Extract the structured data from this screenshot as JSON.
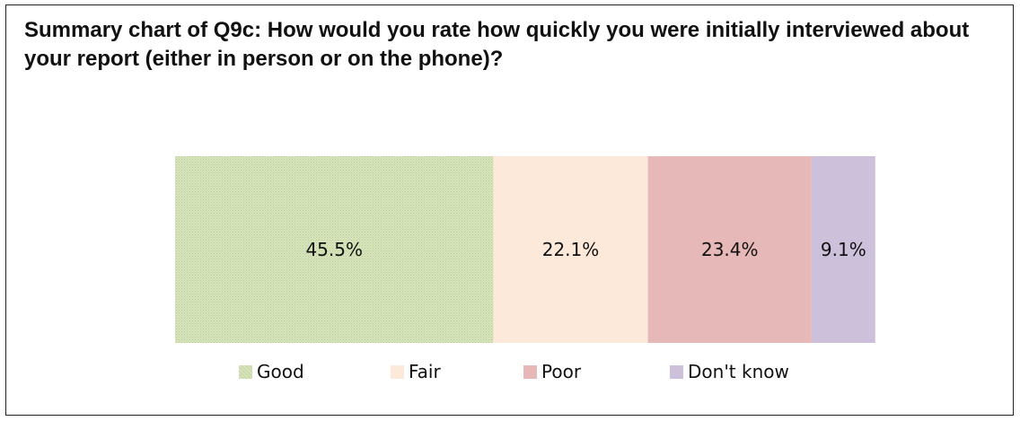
{
  "chart_data": {
    "type": "bar",
    "orientation": "horizontal",
    "stacked": true,
    "title": "Summary chart of Q9c: How would you rate how quickly you were initially interviewed about your report (either in person or on the phone)?",
    "categories": [
      ""
    ],
    "series": [
      {
        "name": "Good",
        "values": [
          45.5
        ],
        "label": "45.5%",
        "color": "#d7e4bd",
        "pattern": "dotted"
      },
      {
        "name": "Fair",
        "values": [
          22.1
        ],
        "label": "22.1%",
        "color": "#fde9d9"
      },
      {
        "name": "Poor",
        "values": [
          23.4
        ],
        "label": "23.4%",
        "color": "#e6b8b7"
      },
      {
        "name": "Don't know",
        "values": [
          9.1
        ],
        "label": "9.1%",
        "color": "#ccc0da"
      }
    ],
    "xlim": [
      0,
      100
    ],
    "grid": false,
    "legend_position": "bottom"
  }
}
